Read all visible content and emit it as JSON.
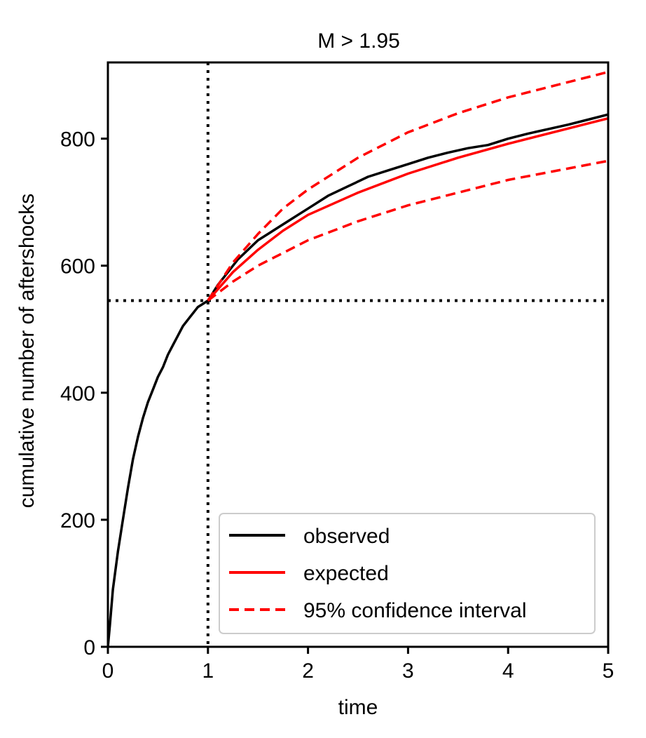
{
  "chart_data": {
    "type": "line",
    "title": "M > 1.95",
    "xlabel": "time",
    "ylabel": "cumulative number of aftershocks",
    "xlim": [
      0,
      5
    ],
    "ylim": [
      0,
      920
    ],
    "xticks": [
      "0",
      "1",
      "2",
      "3",
      "4",
      "5"
    ],
    "yticks": [
      "0",
      "200",
      "400",
      "600",
      "800"
    ],
    "grid": false,
    "legend_position": "lower-right",
    "reference_lines": {
      "vertical_x": 1,
      "horizontal_y": 545,
      "style": "dotted"
    },
    "series": [
      {
        "name": "observed",
        "color": "#000000",
        "style": "solid",
        "x": [
          0,
          0.02,
          0.05,
          0.1,
          0.15,
          0.2,
          0.25,
          0.3,
          0.35,
          0.4,
          0.45,
          0.5,
          0.55,
          0.6,
          0.65,
          0.7,
          0.75,
          0.8,
          0.85,
          0.9,
          0.95,
          1.0,
          1.1,
          1.2,
          1.3,
          1.4,
          1.5,
          1.6,
          1.7,
          1.8,
          1.9,
          2.0,
          2.2,
          2.4,
          2.6,
          2.8,
          3.0,
          3.2,
          3.4,
          3.6,
          3.8,
          4.0,
          4.2,
          4.4,
          4.6,
          4.8,
          5.0
        ],
        "values": [
          0,
          35,
          90,
          150,
          200,
          250,
          295,
          330,
          360,
          385,
          405,
          425,
          440,
          460,
          475,
          490,
          505,
          515,
          525,
          535,
          540,
          545,
          570,
          590,
          610,
          625,
          640,
          650,
          660,
          670,
          680,
          690,
          710,
          725,
          740,
          750,
          760,
          770,
          778,
          785,
          790,
          800,
          808,
          815,
          822,
          830,
          838
        ]
      },
      {
        "name": "expected",
        "color": "#ff0000",
        "style": "solid",
        "x": [
          1.0,
          1.25,
          1.5,
          1.75,
          2.0,
          2.5,
          3.0,
          3.5,
          4.0,
          4.5,
          5.0
        ],
        "values": [
          545,
          590,
          625,
          655,
          680,
          715,
          745,
          770,
          792,
          812,
          832
        ]
      },
      {
        "name": "95% confidence interval",
        "color": "#ff0000",
        "style": "dashed",
        "x": [
          1.0,
          1.25,
          1.5,
          1.75,
          2.0,
          2.5,
          3.0,
          3.5,
          4.0,
          4.5,
          5.0
        ],
        "values": [
          545,
          605,
          650,
          690,
          720,
          770,
          810,
          840,
          865,
          885,
          905
        ]
      },
      {
        "name": "",
        "color": "#ff0000",
        "style": "dashed",
        "x": [
          1.0,
          1.25,
          1.5,
          1.75,
          2.0,
          2.5,
          3.0,
          3.5,
          4.0,
          4.5,
          5.0
        ],
        "values": [
          545,
          575,
          600,
          620,
          640,
          670,
          695,
          715,
          735,
          750,
          765
        ]
      }
    ]
  }
}
